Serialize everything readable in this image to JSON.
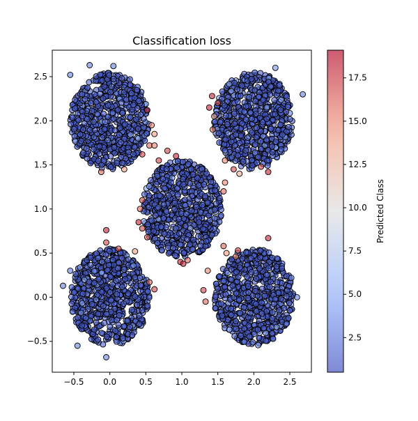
{
  "chart_data": {
    "type": "scatter",
    "title": "Classification loss",
    "xlabel": "",
    "ylabel": "",
    "xlim": [
      -0.8,
      2.8
    ],
    "ylim": [
      -0.85,
      2.8
    ],
    "x_ticks": [
      -0.5,
      0.0,
      0.5,
      1.0,
      1.5,
      2.0,
      2.5
    ],
    "x_tick_labels": [
      "−0.5",
      "0.0",
      "0.5",
      "1.0",
      "1.5",
      "2.0",
      "2.5"
    ],
    "y_ticks": [
      -0.5,
      0.0,
      0.5,
      1.0,
      1.5,
      2.0,
      2.5
    ],
    "y_tick_labels": [
      "−0.5",
      "0.0",
      "0.5",
      "1.0",
      "1.5",
      "2.0",
      "2.5"
    ],
    "grid": false,
    "colormap": "coolwarm",
    "colorbar": {
      "label": "Predicted Class",
      "range": [
        0.5,
        19.1
      ],
      "ticks": [
        2.5,
        5.0,
        7.5,
        10.0,
        12.5,
        15.0,
        17.5
      ],
      "tick_labels": [
        "2.5",
        "5.0",
        "7.5",
        "10.0",
        "12.5",
        "15.0",
        "17.5"
      ]
    },
    "clusters": [
      {
        "center": [
          0.0,
          2.0
        ],
        "radius": 0.55,
        "dominant_value": 1
      },
      {
        "center": [
          2.0,
          2.0
        ],
        "radius": 0.55,
        "dominant_value": 1
      },
      {
        "center": [
          1.0,
          1.0
        ],
        "radius": 0.55,
        "dominant_value": 1
      },
      {
        "center": [
          0.0,
          0.0
        ],
        "radius": 0.55,
        "dominant_value": 1
      },
      {
        "center": [
          2.0,
          0.0
        ],
        "radius": 0.55,
        "dominant_value": 1
      }
    ],
    "outliers": [
      {
        "x": 0.05,
        "y": 2.62,
        "value": 3
      },
      {
        "x": -0.28,
        "y": 2.63,
        "value": 3
      },
      {
        "x": -0.55,
        "y": 2.52,
        "value": 3
      },
      {
        "x": 0.52,
        "y": 2.12,
        "value": 18
      },
      {
        "x": 0.58,
        "y": 1.95,
        "value": 15
      },
      {
        "x": 0.62,
        "y": 1.85,
        "value": 14
      },
      {
        "x": 0.55,
        "y": 1.72,
        "value": 16
      },
      {
        "x": 0.45,
        "y": 1.62,
        "value": 17
      },
      {
        "x": -0.12,
        "y": 1.42,
        "value": 16
      },
      {
        "x": 0.2,
        "y": 1.45,
        "value": 14
      },
      {
        "x": 0.62,
        "y": 1.72,
        "value": 15
      },
      {
        "x": 0.8,
        "y": 1.66,
        "value": 17
      },
      {
        "x": 0.92,
        "y": 1.6,
        "value": 18
      },
      {
        "x": 0.68,
        "y": 1.55,
        "value": 17
      },
      {
        "x": 1.42,
        "y": 2.28,
        "value": 18
      },
      {
        "x": 1.38,
        "y": 2.15,
        "value": 18
      },
      {
        "x": 1.5,
        "y": 2.2,
        "value": 17
      },
      {
        "x": 1.45,
        "y": 2.05,
        "value": 13
      },
      {
        "x": 1.43,
        "y": 1.9,
        "value": 15
      },
      {
        "x": 1.6,
        "y": 1.55,
        "value": 15
      },
      {
        "x": 1.72,
        "y": 1.45,
        "value": 17
      },
      {
        "x": 1.8,
        "y": 1.4,
        "value": 13
      },
      {
        "x": 2.1,
        "y": 1.48,
        "value": 17
      },
      {
        "x": 2.2,
        "y": 1.42,
        "value": 18
      },
      {
        "x": 2.68,
        "y": 2.3,
        "value": 3
      },
      {
        "x": 2.3,
        "y": 2.6,
        "value": 4
      },
      {
        "x": 0.45,
        "y": 1.1,
        "value": 17
      },
      {
        "x": 0.42,
        "y": 1.0,
        "value": 16
      },
      {
        "x": 0.4,
        "y": 0.85,
        "value": 18
      },
      {
        "x": 0.45,
        "y": 0.78,
        "value": 17
      },
      {
        "x": 0.52,
        "y": 0.68,
        "value": 16
      },
      {
        "x": -0.05,
        "y": 0.76,
        "value": 18
      },
      {
        "x": -0.05,
        "y": 0.62,
        "value": 17
      },
      {
        "x": 0.12,
        "y": 0.55,
        "value": 17
      },
      {
        "x": 0.35,
        "y": 0.52,
        "value": 14
      },
      {
        "x": 0.62,
        "y": 0.09,
        "value": 17
      },
      {
        "x": 0.55,
        "y": 0.17,
        "value": 16
      },
      {
        "x": 0.98,
        "y": 0.4,
        "value": 18
      },
      {
        "x": 1.02,
        "y": 0.38,
        "value": 18
      },
      {
        "x": 1.08,
        "y": 0.42,
        "value": 16
      },
      {
        "x": 1.58,
        "y": 0.58,
        "value": 16
      },
      {
        "x": 1.62,
        "y": 0.5,
        "value": 14
      },
      {
        "x": 1.78,
        "y": 0.53,
        "value": 17
      },
      {
        "x": 1.75,
        "y": 0.46,
        "value": 15
      },
      {
        "x": 2.2,
        "y": 0.67,
        "value": 18
      },
      {
        "x": 1.3,
        "y": 0.08,
        "value": 17
      },
      {
        "x": 1.33,
        "y": -0.05,
        "value": 16
      },
      {
        "x": 1.36,
        "y": 0.3,
        "value": 15
      },
      {
        "x": 1.6,
        "y": 1.3,
        "value": 15
      },
      {
        "x": 1.58,
        "y": 1.2,
        "value": 16
      },
      {
        "x": -0.65,
        "y": 0.13,
        "value": 3
      },
      {
        "x": -0.55,
        "y": 0.3,
        "value": 3
      },
      {
        "x": -0.45,
        "y": -0.55,
        "value": 3
      },
      {
        "x": -0.05,
        "y": -0.68,
        "value": 3
      },
      {
        "x": 2.52,
        "y": 0.22,
        "value": 3
      },
      {
        "x": 2.6,
        "y": 0.0,
        "value": 3
      }
    ]
  }
}
